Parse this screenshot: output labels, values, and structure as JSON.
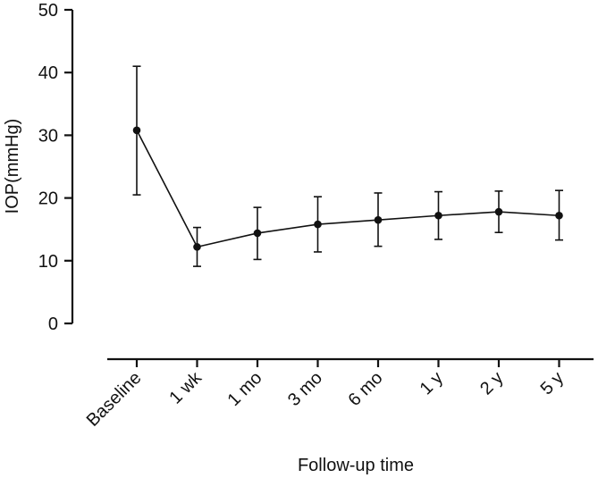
{
  "chart_data": {
    "type": "line",
    "title": "",
    "xlabel": "Follow-up time",
    "ylabel": "IOP(mmHg)",
    "categories": [
      "Baseline",
      "1 wk",
      "1 mo",
      "3 mo",
      "6 mo",
      "1 y",
      "2 y",
      "5 y"
    ],
    "series": [
      {
        "name": "",
        "values": [
          30.8,
          12.2,
          14.4,
          15.8,
          16.5,
          17.2,
          17.8,
          17.2
        ],
        "error_low": [
          20.5,
          9.1,
          10.2,
          11.4,
          12.3,
          13.4,
          14.5,
          13.3
        ],
        "error_high": [
          41.0,
          15.3,
          18.5,
          20.2,
          20.8,
          21.0,
          21.1,
          21.2
        ]
      }
    ],
    "ylim": [
      0,
      50
    ],
    "yticks": [
      0,
      10,
      20,
      30,
      40,
      50
    ],
    "grid": false,
    "colors": {
      "line": "#111111",
      "marker": "#111111"
    }
  }
}
